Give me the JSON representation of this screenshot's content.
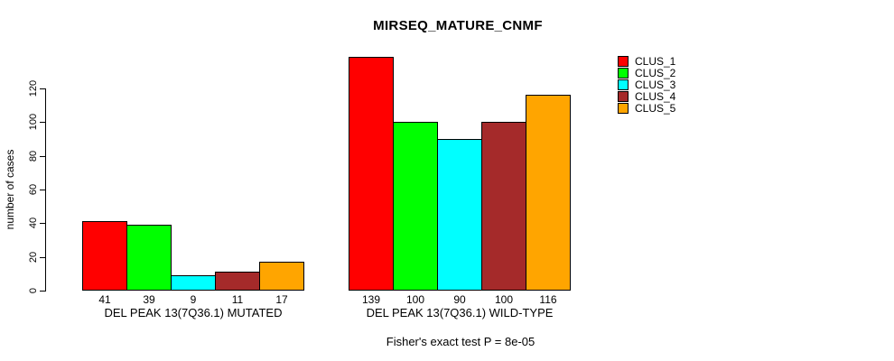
{
  "title": "MIRSEQ_MATURE_CNMF",
  "chart_data": {
    "type": "bar",
    "title": "MIRSEQ_MATURE_CNMF",
    "ylabel": "number of cases",
    "xlabel": "",
    "ylim": [
      0,
      120
    ],
    "yticks": [
      0,
      20,
      40,
      60,
      80,
      100,
      120
    ],
    "grid": false,
    "legend_position": "right",
    "series": [
      {
        "name": "CLUS_1",
        "color": "#FF0000"
      },
      {
        "name": "CLUS_2",
        "color": "#00FF00"
      },
      {
        "name": "CLUS_3",
        "color": "#00FFFF"
      },
      {
        "name": "CLUS_4",
        "color": "#A52A2A"
      },
      {
        "name": "CLUS_5",
        "color": "#FFA500"
      }
    ],
    "groups": [
      {
        "label": "DEL PEAK 13(7Q36.1) MUTATED",
        "values": [
          41,
          39,
          9,
          11,
          17
        ]
      },
      {
        "label": "DEL PEAK 13(7Q36.1) WILD-TYPE",
        "values": [
          139,
          100,
          90,
          100,
          116
        ]
      }
    ],
    "annotation": "Fisher's exact test P = 8e-05"
  }
}
